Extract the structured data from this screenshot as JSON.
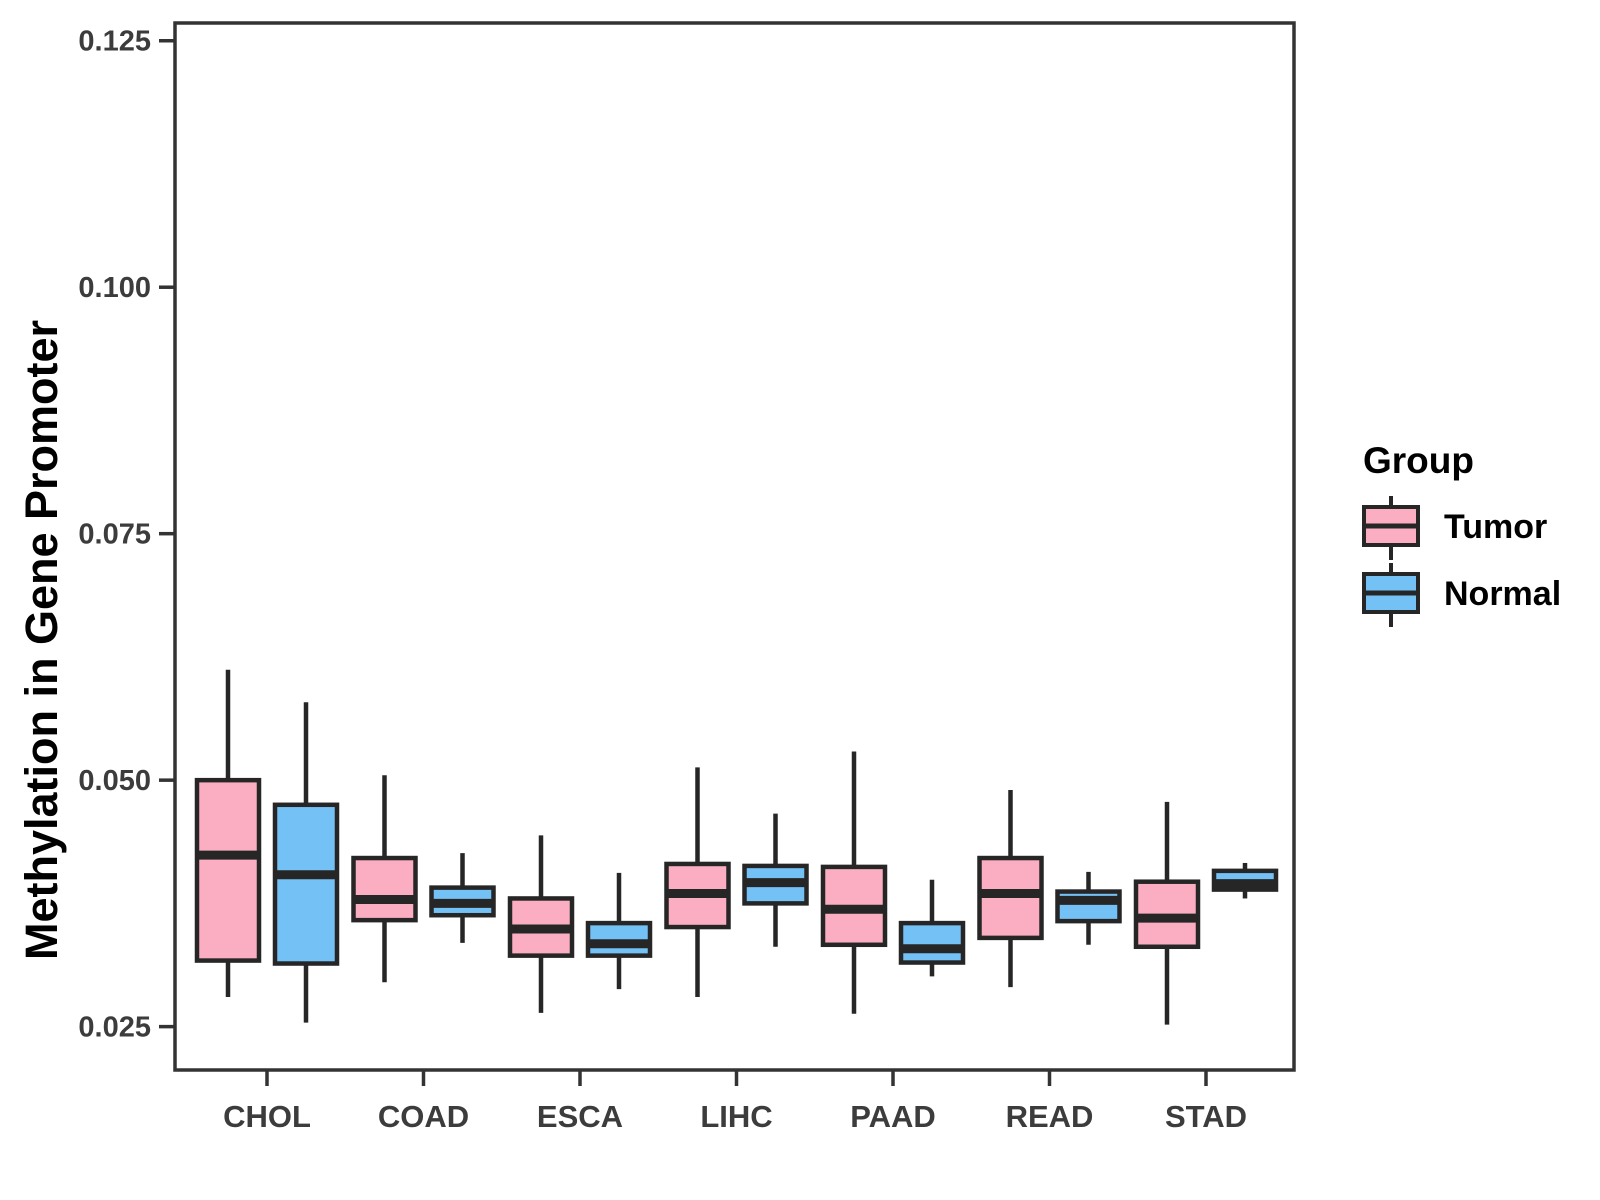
{
  "chart_data": {
    "type": "boxplot",
    "title": "",
    "xlabel": "",
    "ylabel": "Methylation in Gene Promoter",
    "legend_title": "Group",
    "legend_position": "right",
    "grid": false,
    "categories": [
      "CHOL",
      "COAD",
      "ESCA",
      "LIHC",
      "PAAD",
      "READ",
      "STAD"
    ],
    "y_ticks": [
      {
        "value": 0.025,
        "label": "0.025"
      },
      {
        "value": 0.05,
        "label": "0.050"
      },
      {
        "value": 0.075,
        "label": "0.075"
      },
      {
        "value": 0.1,
        "label": "0.100"
      },
      {
        "value": 0.125,
        "label": "0.125"
      }
    ],
    "ylim": [
      0.0206,
      0.1268
    ],
    "colors": {
      "tumor_fill": "#FBAEC1",
      "normal_fill": "#74C1F6",
      "box_border": "#262626",
      "axis": "#333333",
      "tick_text": "#3C3C3C"
    },
    "series": [
      {
        "name": "Tumor",
        "fill": "#FBAEC1",
        "boxes": [
          {
            "category": "CHOL",
            "min": 0.028,
            "q1": 0.0317,
            "median": 0.0424,
            "q3": 0.05,
            "max": 0.0612
          },
          {
            "category": "COAD",
            "min": 0.0295,
            "q1": 0.0358,
            "median": 0.0379,
            "q3": 0.0421,
            "max": 0.0505
          },
          {
            "category": "ESCA",
            "min": 0.0264,
            "q1": 0.0322,
            "median": 0.0349,
            "q3": 0.038,
            "max": 0.0444
          },
          {
            "category": "LIHC",
            "min": 0.028,
            "q1": 0.0351,
            "median": 0.0385,
            "q3": 0.0415,
            "max": 0.0513
          },
          {
            "category": "PAAD",
            "min": 0.0263,
            "q1": 0.0333,
            "median": 0.0369,
            "q3": 0.0412,
            "max": 0.0529
          },
          {
            "category": "READ",
            "min": 0.029,
            "q1": 0.034,
            "median": 0.0385,
            "q3": 0.0421,
            "max": 0.049
          },
          {
            "category": "STAD",
            "min": 0.0252,
            "q1": 0.0331,
            "median": 0.036,
            "q3": 0.0397,
            "max": 0.0478
          }
        ]
      },
      {
        "name": "Normal",
        "fill": "#74C1F6",
        "boxes": [
          {
            "category": "CHOL",
            "min": 0.0254,
            "q1": 0.0314,
            "median": 0.0404,
            "q3": 0.0475,
            "max": 0.0579
          },
          {
            "category": "COAD",
            "min": 0.0335,
            "q1": 0.0363,
            "median": 0.0375,
            "q3": 0.0391,
            "max": 0.0426
          },
          {
            "category": "ESCA",
            "min": 0.0288,
            "q1": 0.0322,
            "median": 0.0334,
            "q3": 0.0355,
            "max": 0.0406
          },
          {
            "category": "LIHC",
            "min": 0.0331,
            "q1": 0.0375,
            "median": 0.0396,
            "q3": 0.0413,
            "max": 0.0466
          },
          {
            "category": "PAAD",
            "min": 0.0301,
            "q1": 0.0315,
            "median": 0.0329,
            "q3": 0.0355,
            "max": 0.0399
          },
          {
            "category": "READ",
            "min": 0.0333,
            "q1": 0.0357,
            "median": 0.0378,
            "q3": 0.0387,
            "max": 0.0407
          },
          {
            "category": "STAD",
            "min": 0.038,
            "q1": 0.0389,
            "median": 0.0395,
            "q3": 0.0408,
            "max": 0.0416
          }
        ]
      }
    ]
  }
}
